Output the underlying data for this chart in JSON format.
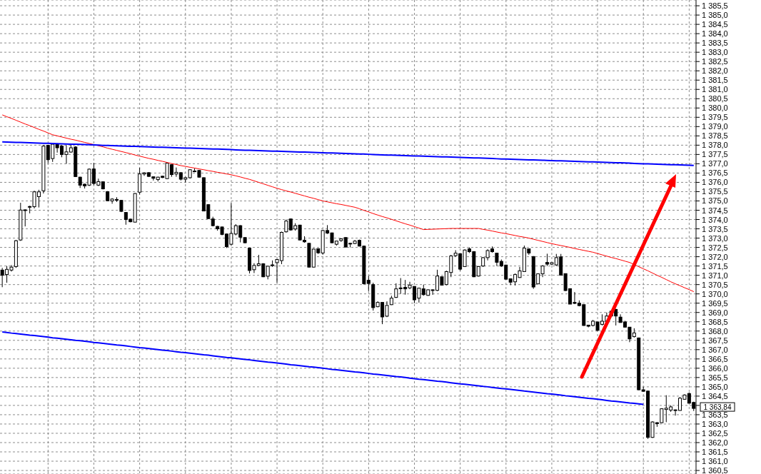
{
  "chart_data": {
    "type": "candlestick",
    "color": "#000000",
    "grid": true,
    "tick_labels": "y",
    "categories": [
      null,
      null,
      null,
      null,
      null,
      null,
      null,
      null,
      null,
      null,
      null,
      null,
      null,
      null,
      null,
      null,
      null,
      null,
      null,
      null,
      null,
      null,
      null,
      null,
      null,
      null,
      null,
      null,
      null,
      null,
      null,
      null,
      null,
      null,
      null,
      null,
      null,
      null,
      null,
      null,
      null,
      null,
      null,
      null,
      null,
      null,
      null,
      null,
      null,
      null,
      null,
      null,
      null,
      null,
      null,
      null,
      null,
      null,
      null,
      null,
      null,
      null,
      null,
      null,
      null,
      null,
      null,
      null,
      null,
      null,
      null,
      null,
      null,
      null,
      null,
      null,
      null,
      null,
      null,
      null,
      null,
      null,
      null,
      null,
      null,
      null,
      null,
      null,
      null,
      null,
      null,
      null,
      null,
      null,
      null,
      null,
      null,
      null,
      null,
      null,
      null,
      null,
      null,
      null,
      null,
      null,
      null,
      null,
      null,
      null,
      null,
      null,
      null,
      null,
      null,
      null,
      null,
      null,
      null,
      null,
      null,
      null,
      null,
      null,
      null,
      null,
      null,
      null,
      null,
      null,
      null,
      null,
      null,
      null,
      null,
      null,
      null,
      null,
      null,
      null,
      null,
      null,
      null,
      null,
      null,
      null,
      null,
      null,
      null,
      null,
      null,
      null
    ],
    "ohlc": [
      [
        1371.28,
        1371.4,
        1370.36,
        1371.0
      ],
      [
        1371.04,
        1371.5,
        1370.6,
        1371.32
      ],
      [
        1371.28,
        1371.55,
        1371.2,
        1371.44
      ],
      [
        1371.47,
        1372.9,
        1371.4,
        1372.86
      ],
      [
        1372.9,
        1374.9,
        1372.85,
        1374.51
      ],
      [
        1374.5,
        1374.55,
        1373.63,
        1374.52
      ],
      [
        1374.68,
        1374.74,
        1374.33,
        1374.7
      ],
      [
        1374.69,
        1375.55,
        1374.6,
        1375.49
      ],
      [
        1375.23,
        1375.6,
        1374.65,
        1375.49
      ],
      [
        1375.55,
        1378.0,
        1375.4,
        1377.95
      ],
      [
        1377.99,
        1378.0,
        1377.05,
        1377.22
      ],
      [
        1377.28,
        1378.1,
        1377.1,
        1378.05
      ],
      [
        1378.05,
        1378.1,
        1377.6,
        1377.86
      ],
      [
        1377.95,
        1378.0,
        1377.35,
        1377.5
      ],
      [
        1377.5,
        1378.0,
        1377.0,
        1377.64
      ],
      [
        1377.63,
        1378.05,
        1377.6,
        1377.86
      ],
      [
        1377.9,
        1377.95,
        1376.3,
        1376.31
      ],
      [
        1376.28,
        1376.3,
        1375.7,
        1375.85
      ],
      [
        1375.9,
        1375.93,
        1375.67,
        1375.81
      ],
      [
        1375.85,
        1376.75,
        1375.8,
        1376.71
      ],
      [
        1376.72,
        1377.05,
        1375.85,
        1375.94
      ],
      [
        1375.85,
        1376.2,
        1375.8,
        1376.04
      ],
      [
        1376.03,
        1376.05,
        1375.62,
        1375.65
      ],
      [
        1375.5,
        1375.53,
        1375.0,
        1375.01
      ],
      [
        1375.0,
        1375.15,
        1374.85,
        1375.1
      ],
      [
        1375.07,
        1375.2,
        1374.95,
        1375.08
      ],
      [
        1375.03,
        1375.05,
        1374.4,
        1374.44
      ],
      [
        1374.38,
        1374.4,
        1373.72,
        1374.0
      ],
      [
        1374.02,
        1374.05,
        1373.85,
        1373.88
      ],
      [
        1373.86,
        1375.42,
        1373.85,
        1375.4
      ],
      [
        1375.47,
        1376.78,
        1375.35,
        1376.45
      ],
      [
        1376.45,
        1376.55,
        1376.35,
        1376.51
      ],
      [
        1376.52,
        1376.55,
        1376.3,
        1376.32
      ],
      [
        1376.3,
        1376.3,
        1376.1,
        1376.22
      ],
      [
        1376.15,
        1376.3,
        1376.05,
        1376.28
      ],
      [
        1376.33,
        1376.35,
        1376.23,
        1376.26
      ],
      [
        1376.2,
        1377.05,
        1376.17,
        1377.03
      ],
      [
        1376.95,
        1376.97,
        1376.3,
        1376.42
      ],
      [
        1376.45,
        1376.8,
        1376.3,
        1376.54
      ],
      [
        1376.52,
        1376.55,
        1376.1,
        1376.17
      ],
      [
        1376.17,
        1376.3,
        1376.0,
        1376.25
      ],
      [
        1376.25,
        1376.7,
        1376.2,
        1376.68
      ],
      [
        1376.6,
        1376.75,
        1376.55,
        1376.61
      ],
      [
        1376.64,
        1376.66,
        1376.25,
        1376.28
      ],
      [
        1376.25,
        1376.27,
        1374.45,
        1374.46
      ],
      [
        1374.8,
        1374.82,
        1374.03,
        1374.05
      ],
      [
        1374.03,
        1374.15,
        1373.63,
        1373.67
      ],
      [
        1373.63,
        1373.66,
        1373.4,
        1373.5
      ],
      [
        1373.6,
        1373.62,
        1373.15,
        1373.2
      ],
      [
        1373.22,
        1373.25,
        1372.47,
        1372.54
      ],
      [
        1372.67,
        1374.88,
        1372.62,
        1373.25
      ],
      [
        1373.22,
        1373.75,
        1373.15,
        1373.67
      ],
      [
        1373.67,
        1373.7,
        1372.77,
        1373.05
      ],
      [
        1373.03,
        1373.05,
        1372.72,
        1372.75
      ],
      [
        1372.46,
        1372.48,
        1371.1,
        1371.26
      ],
      [
        1371.3,
        1371.65,
        1371.12,
        1371.53
      ],
      [
        1371.53,
        1372.1,
        1371.5,
        1371.62
      ],
      [
        1371.62,
        1371.65,
        1370.9,
        1370.92
      ],
      [
        1370.95,
        1371.5,
        1370.78,
        1371.49
      ],
      [
        1371.55,
        1371.8,
        1371.45,
        1371.56
      ],
      [
        1371.68,
        1371.88,
        1370.6,
        1371.85
      ],
      [
        1371.79,
        1373.35,
        1371.6,
        1373.31
      ],
      [
        1373.34,
        1374.0,
        1373.3,
        1373.92
      ],
      [
        1374.03,
        1374.05,
        1373.4,
        1373.44
      ],
      [
        1373.49,
        1373.8,
        1373.4,
        1373.67
      ],
      [
        1373.7,
        1373.72,
        1372.88,
        1372.9
      ],
      [
        1372.89,
        1373.1,
        1372.75,
        1372.8
      ],
      [
        1372.72,
        1372.74,
        1371.42,
        1371.44
      ],
      [
        1371.44,
        1372.45,
        1371.42,
        1372.41
      ],
      [
        1372.43,
        1372.45,
        1372.15,
        1372.21
      ],
      [
        1372.2,
        1373.45,
        1372.12,
        1373.41
      ],
      [
        1373.41,
        1373.7,
        1373.22,
        1373.27
      ],
      [
        1373.28,
        1373.3,
        1372.72,
        1372.75
      ],
      [
        1372.67,
        1372.86,
        1372.6,
        1372.84
      ],
      [
        1372.87,
        1373.0,
        1372.8,
        1372.96
      ],
      [
        1373.03,
        1373.05,
        1372.5,
        1372.52
      ],
      [
        1372.72,
        1372.73,
        1372.5,
        1372.7
      ],
      [
        1372.71,
        1372.9,
        1372.68,
        1372.84
      ],
      [
        1372.88,
        1372.92,
        1372.55,
        1372.57
      ],
      [
        1372.57,
        1372.6,
        1370.5,
        1370.55
      ],
      [
        1370.73,
        1370.97,
        1370.15,
        1370.56
      ],
      [
        1370.5,
        1370.6,
        1369.1,
        1369.26
      ],
      [
        1369.31,
        1369.6,
        1369.28,
        1369.54
      ],
      [
        1369.54,
        1369.56,
        1368.37,
        1368.76
      ],
      [
        1368.8,
        1369.6,
        1368.75,
        1369.38
      ],
      [
        1369.42,
        1369.9,
        1369.4,
        1369.77
      ],
      [
        1369.81,
        1370.57,
        1369.78,
        1370.27
      ],
      [
        1370.32,
        1370.85,
        1370.0,
        1370.31
      ],
      [
        1370.35,
        1370.75,
        1369.96,
        1370.27
      ],
      [
        1370.32,
        1370.65,
        1370.25,
        1370.47
      ],
      [
        1370.4,
        1370.42,
        1369.5,
        1369.68
      ],
      [
        1369.77,
        1370.33,
        1369.53,
        1370.31
      ],
      [
        1370.27,
        1370.5,
        1369.9,
        1369.96
      ],
      [
        1369.92,
        1370.24,
        1369.9,
        1370.22
      ],
      [
        1370.22,
        1370.24,
        1369.95,
        1370.21
      ],
      [
        1370.19,
        1371.3,
        1370.15,
        1370.96
      ],
      [
        1370.92,
        1370.95,
        1370.45,
        1370.47
      ],
      [
        1370.5,
        1371.25,
        1370.46,
        1371.2
      ],
      [
        1371.15,
        1372.1,
        1370.9,
        1372.04
      ],
      [
        1372.06,
        1372.35,
        1372.0,
        1372.19
      ],
      [
        1372.16,
        1372.18,
        1371.25,
        1371.33
      ],
      [
        1371.47,
        1372.4,
        1371.45,
        1372.36
      ],
      [
        1372.42,
        1372.5,
        1372.2,
        1372.27
      ],
      [
        1372.27,
        1372.3,
        1370.9,
        1370.92
      ],
      [
        1370.96,
        1371.5,
        1370.93,
        1371.47
      ],
      [
        1371.5,
        1371.98,
        1371.45,
        1371.95
      ],
      [
        1371.95,
        1372.4,
        1371.8,
        1372.33
      ],
      [
        1372.42,
        1372.55,
        1372.22,
        1372.27
      ],
      [
        1372.19,
        1372.2,
        1371.5,
        1371.7
      ],
      [
        1371.75,
        1371.85,
        1371.45,
        1371.5
      ],
      [
        1371.55,
        1371.57,
        1370.77,
        1370.79
      ],
      [
        1370.81,
        1370.83,
        1370.47,
        1370.63
      ],
      [
        1370.65,
        1371.1,
        1370.45,
        1371.04
      ],
      [
        1370.88,
        1371.45,
        1370.86,
        1371.24
      ],
      [
        1371.2,
        1372.6,
        1371.18,
        1372.46
      ],
      [
        1372.42,
        1372.43,
        1372.1,
        1372.2
      ],
      [
        1372.01,
        1372.03,
        1370.27,
        1370.37
      ],
      [
        1370.54,
        1371.1,
        1370.52,
        1371.08
      ],
      [
        1371.08,
        1371.55,
        1370.9,
        1371.5
      ],
      [
        1371.69,
        1372.16,
        1371.5,
        1371.6
      ],
      [
        1371.6,
        1371.7,
        1371.55,
        1371.68
      ],
      [
        1371.56,
        1372.15,
        1371.5,
        1371.95
      ],
      [
        1371.99,
        1372.15,
        1371.0,
        1371.01
      ],
      [
        1371.09,
        1371.1,
        1370.15,
        1370.18
      ],
      [
        1370.28,
        1370.3,
        1369.45,
        1369.45
      ],
      [
        1369.54,
        1370.1,
        1369.45,
        1369.49
      ],
      [
        1369.5,
        1369.65,
        1369.33,
        1369.37
      ],
      [
        1369.42,
        1369.43,
        1368.28,
        1368.3
      ],
      [
        1368.32,
        1368.33,
        1368.2,
        1368.26
      ],
      [
        1368.3,
        1368.6,
        1368.25,
        1368.53
      ],
      [
        1368.49,
        1368.5,
        1368.0,
        1368.04
      ],
      [
        1368.36,
        1368.9,
        1368.3,
        1368.53
      ],
      [
        1368.53,
        1369.0,
        1368.45,
        1368.81
      ],
      [
        1368.81,
        1369.1,
        1368.75,
        1369.07
      ],
      [
        1369.16,
        1369.2,
        1368.3,
        1368.81
      ],
      [
        1368.75,
        1368.9,
        1368.45,
        1368.46
      ],
      [
        1368.49,
        1368.55,
        1368.2,
        1368.21
      ],
      [
        1368.21,
        1368.22,
        1367.4,
        1367.58
      ],
      [
        1367.7,
        1368.15,
        1367.65,
        1367.9
      ],
      [
        1367.63,
        1367.65,
        1364.82,
        1364.84
      ],
      [
        1364.84,
        1365.0,
        1364.74,
        1364.76
      ],
      [
        1364.77,
        1364.8,
        1362.2,
        1362.28
      ],
      [
        1362.28,
        1363.15,
        1362.25,
        1363.11
      ],
      [
        1363.07,
        1363.1,
        1362.85,
        1363.02
      ],
      [
        1363.07,
        1363.85,
        1363.05,
        1363.82
      ],
      [
        1363.78,
        1364.55,
        1363.1,
        1363.85
      ],
      [
        1363.75,
        1364.0,
        1363.65,
        1363.92
      ],
      [
        1363.75,
        1363.78,
        1363.45,
        1363.76
      ],
      [
        1363.73,
        1364.45,
        1363.72,
        1364.39
      ],
      [
        1364.33,
        1364.6,
        1364.3,
        1364.56
      ],
      [
        1364.64,
        1364.7,
        1364.1,
        1364.12
      ],
      [
        1364.16,
        1364.2,
        1363.7,
        1363.84
      ]
    ],
    "series": [
      {
        "type": "line",
        "color": "#ff0000",
        "values": [
          1379.63,
          1379.53,
          1379.44,
          1379.34,
          1379.24,
          1379.14,
          1379.05,
          1378.95,
          1378.85,
          1378.76,
          1378.66,
          1378.56,
          1378.5,
          1378.44,
          1378.38,
          1378.32,
          1378.27,
          1378.21,
          1378.15,
          1378.09,
          1378.03,
          1377.97,
          1377.91,
          1377.84,
          1377.78,
          1377.72,
          1377.66,
          1377.6,
          1377.54,
          1377.47,
          1377.41,
          1377.35,
          1377.29,
          1377.24,
          1377.18,
          1377.13,
          1377.07,
          1377.01,
          1376.96,
          1376.9,
          1376.86,
          1376.81,
          1376.77,
          1376.72,
          1376.68,
          1376.63,
          1376.59,
          1376.54,
          1376.5,
          1376.45,
          1376.41,
          1376.35,
          1376.29,
          1376.22,
          1376.16,
          1376.08,
          1376.0,
          1375.92,
          1375.84,
          1375.76,
          1375.68,
          1375.61,
          1375.54,
          1375.48,
          1375.41,
          1375.34,
          1375.27,
          1375.2,
          1375.14,
          1375.07,
          1375.0,
          1374.95,
          1374.9,
          1374.85,
          1374.81,
          1374.76,
          1374.71,
          1374.66,
          1374.58,
          1374.49,
          1374.41,
          1374.32,
          1374.24,
          1374.16,
          1374.09,
          1374.01,
          1373.93,
          1373.85,
          1373.77,
          1373.7,
          1373.62,
          1373.54,
          1373.46,
          1373.47,
          1373.48,
          1373.49,
          1373.5,
          1373.51,
          1373.52,
          1373.52,
          1373.52,
          1373.52,
          1373.52,
          1373.52,
          1373.52,
          1373.47,
          1373.43,
          1373.38,
          1373.33,
          1373.28,
          1373.24,
          1373.19,
          1373.14,
          1373.09,
          1373.05,
          1373.0,
          1372.94,
          1372.88,
          1372.82,
          1372.76,
          1372.7,
          1372.65,
          1372.6,
          1372.55,
          1372.5,
          1372.44,
          1372.39,
          1372.34,
          1372.29,
          1372.24,
          1372.17,
          1372.1,
          1372.03,
          1371.96,
          1371.9,
          1371.83,
          1371.76,
          1371.69,
          1371.58,
          1371.46,
          1371.35,
          1371.24,
          1371.12,
          1371.0,
          1370.89,
          1370.77,
          1370.65,
          1370.54,
          1370.44,
          1370.33,
          1370.23,
          1370.12
        ]
      },
      {
        "type": "line",
        "color": "#0000ff",
        "values": [
          1378.18,
          1378.17,
          1378.16,
          1378.15,
          1378.15,
          1378.14,
          1378.13,
          1378.12,
          1378.11,
          1378.1,
          1378.1,
          1378.09,
          1378.08,
          1378.07,
          1378.06,
          1378.05,
          1378.05,
          1378.04,
          1378.03,
          1378.02,
          1378.01,
          1378.0,
          1377.99,
          1377.99,
          1377.98,
          1377.97,
          1377.96,
          1377.95,
          1377.94,
          1377.94,
          1377.93,
          1377.92,
          1377.91,
          1377.9,
          1377.89,
          1377.89,
          1377.88,
          1377.87,
          1377.86,
          1377.85,
          1377.84,
          1377.84,
          1377.83,
          1377.82,
          1377.81,
          1377.8,
          1377.79,
          1377.79,
          1377.78,
          1377.77,
          1377.76,
          1377.75,
          1377.74,
          1377.73,
          1377.73,
          1377.72,
          1377.71,
          1377.7,
          1377.69,
          1377.68,
          1377.68,
          1377.67,
          1377.66,
          1377.65,
          1377.64,
          1377.63,
          1377.63,
          1377.62,
          1377.61,
          1377.6,
          1377.59,
          1377.58,
          1377.58,
          1377.57,
          1377.56,
          1377.55,
          1377.54,
          1377.53,
          1377.52,
          1377.52,
          1377.51,
          1377.5,
          1377.49,
          1377.48,
          1377.47,
          1377.47,
          1377.46,
          1377.45,
          1377.44,
          1377.43,
          1377.42,
          1377.42,
          1377.41,
          1377.4,
          1377.39,
          1377.38,
          1377.37,
          1377.37,
          1377.36,
          1377.35,
          1377.34,
          1377.33,
          1377.32,
          1377.31,
          1377.31,
          1377.3,
          1377.29,
          1377.28,
          1377.27,
          1377.26,
          1377.26,
          1377.25,
          1377.24,
          1377.23,
          1377.22,
          1377.21,
          1377.21,
          1377.2,
          1377.19,
          1377.18,
          1377.17,
          1377.16,
          1377.16,
          1377.15,
          1377.14,
          1377.13,
          1377.12,
          1377.11,
          1377.1,
          1377.1,
          1377.09,
          1377.08,
          1377.07,
          1377.06,
          1377.05,
          1377.05,
          1377.04,
          1377.03,
          1377.02,
          1377.01,
          1377.0,
          1377.0,
          1376.99,
          1376.98,
          1376.97,
          1376.96,
          1376.95,
          1376.95,
          1376.94,
          1376.93,
          1376.92,
          1376.91
        ]
      },
      {
        "type": "line",
        "color": "#0000ff",
        "values": [
          1367.95,
          1367.92,
          1367.89,
          1367.87,
          1367.84,
          1367.81,
          1367.78,
          1367.76,
          1367.73,
          1367.7,
          1367.67,
          1367.64,
          1367.62,
          1367.59,
          1367.56,
          1367.53,
          1367.5,
          1367.48,
          1367.45,
          1367.42,
          1367.39,
          1367.37,
          1367.34,
          1367.31,
          1367.28,
          1367.25,
          1367.23,
          1367.2,
          1367.17,
          1367.14,
          1367.11,
          1367.09,
          1367.06,
          1367.03,
          1367.0,
          1366.97,
          1366.95,
          1366.92,
          1366.89,
          1366.86,
          1366.84,
          1366.81,
          1366.78,
          1366.75,
          1366.72,
          1366.7,
          1366.67,
          1366.64,
          1366.61,
          1366.58,
          1366.56,
          1366.53,
          1366.5,
          1366.47,
          1366.45,
          1366.42,
          1366.39,
          1366.36,
          1366.33,
          1366.31,
          1366.28,
          1366.25,
          1366.22,
          1366.19,
          1366.17,
          1366.14,
          1366.11,
          1366.08,
          1366.06,
          1366.03,
          1366.0,
          1365.97,
          1365.94,
          1365.92,
          1365.89,
          1365.86,
          1365.83,
          1365.8,
          1365.78,
          1365.75,
          1365.72,
          1365.69,
          1365.67,
          1365.64,
          1365.61,
          1365.58,
          1365.55,
          1365.53,
          1365.5,
          1365.47,
          1365.44,
          1365.41,
          1365.39,
          1365.36,
          1365.33,
          1365.3,
          1365.28,
          1365.25,
          1365.22,
          1365.19,
          1365.16,
          1365.14,
          1365.11,
          1365.08,
          1365.05,
          1365.02,
          1365.0,
          1364.97,
          1364.94,
          1364.91,
          1364.89,
          1364.86,
          1364.83,
          1364.8,
          1364.77,
          1364.75,
          1364.72,
          1364.69,
          1364.66,
          1364.63,
          1364.61,
          1364.58,
          1364.55,
          1364.52,
          1364.5,
          1364.47,
          1364.44,
          1364.41,
          1364.38,
          1364.36,
          1364.33,
          1364.3,
          1364.27,
          1364.24,
          1364.22,
          1364.19,
          1364.16,
          1364.13,
          1364.11,
          1364.08,
          1364.05,
          null,
          null,
          null,
          null,
          null,
          null,
          null,
          null,
          null,
          null,
          null
        ]
      }
    ],
    "ylim": [
      1360.31,
      1385.81
    ],
    "yticks": [
      {
        "value": 1360.5,
        "label": "1 360,5"
      },
      {
        "value": 1361,
        "label": "1 361,0"
      },
      {
        "value": 1361.5,
        "label": "1 361,5"
      },
      {
        "value": 1362,
        "label": "1 362,0"
      },
      {
        "value": 1362.5,
        "label": "1 362,5"
      },
      {
        "value": 1363,
        "label": "1 363,0"
      },
      {
        "value": 1363.5,
        "label": "1 363,5"
      },
      {
        "value": 1364,
        "label": null
      },
      {
        "value": 1364.5,
        "label": "1 364,5"
      },
      {
        "value": 1365,
        "label": "1 365,0"
      },
      {
        "value": 1365.5,
        "label": "1 365,5"
      },
      {
        "value": 1366,
        "label": "1 366,0"
      },
      {
        "value": 1366.5,
        "label": "1 366,5"
      },
      {
        "value": 1367,
        "label": "1 367,0"
      },
      {
        "value": 1367.5,
        "label": "1 367,5"
      },
      {
        "value": 1368,
        "label": "1 368,0"
      },
      {
        "value": 1368.5,
        "label": "1 368,5"
      },
      {
        "value": 1369,
        "label": "1 369,0"
      },
      {
        "value": 1369.5,
        "label": "1 369,5"
      },
      {
        "value": 1370,
        "label": "1 370,0"
      },
      {
        "value": 1370.5,
        "label": "1 370,5"
      },
      {
        "value": 1371,
        "label": "1 371,0"
      },
      {
        "value": 1371.5,
        "label": "1 371,5"
      },
      {
        "value": 1372,
        "label": "1 372,0"
      },
      {
        "value": 1372.5,
        "label": "1 372,5"
      },
      {
        "value": 1373,
        "label": "1 373,0"
      },
      {
        "value": 1373.5,
        "label": "1 373,5"
      },
      {
        "value": 1374,
        "label": "1 374,0"
      },
      {
        "value": 1374.5,
        "label": "1 374,5"
      },
      {
        "value": 1375,
        "label": "1 375,0"
      },
      {
        "value": 1375.5,
        "label": "1 375,5"
      },
      {
        "value": 1376,
        "label": "1 376,0"
      },
      {
        "value": 1376.5,
        "label": "1 376,5"
      },
      {
        "value": 1377,
        "label": "1 377,0"
      },
      {
        "value": 1377.5,
        "label": "1 377,5"
      },
      {
        "value": 1378,
        "label": "1 378,0"
      },
      {
        "value": 1378.5,
        "label": "1 378,5"
      },
      {
        "value": 1379,
        "label": "1 379,0"
      },
      {
        "value": 1379.5,
        "label": "1 379,5"
      },
      {
        "value": 1380,
        "label": "1 380,0"
      },
      {
        "value": 1380.5,
        "label": "1 380,5"
      },
      {
        "value": 1381,
        "label": "1 381,0"
      },
      {
        "value": 1381.5,
        "label": "1 381,5"
      },
      {
        "value": 1382,
        "label": "1 382,0"
      },
      {
        "value": 1382.5,
        "label": "1 382,5"
      },
      {
        "value": 1383,
        "label": "1 383,0"
      },
      {
        "value": 1383.5,
        "label": "1 383,5"
      },
      {
        "value": 1384,
        "label": "1 384,0"
      },
      {
        "value": 1384.5,
        "label": "1 384,5"
      },
      {
        "value": 1385,
        "label": "1 385,0"
      },
      {
        "value": 1385.5,
        "label": "1 385,5"
      }
    ],
    "annotations": [
      "1 363,84"
    ]
  }
}
